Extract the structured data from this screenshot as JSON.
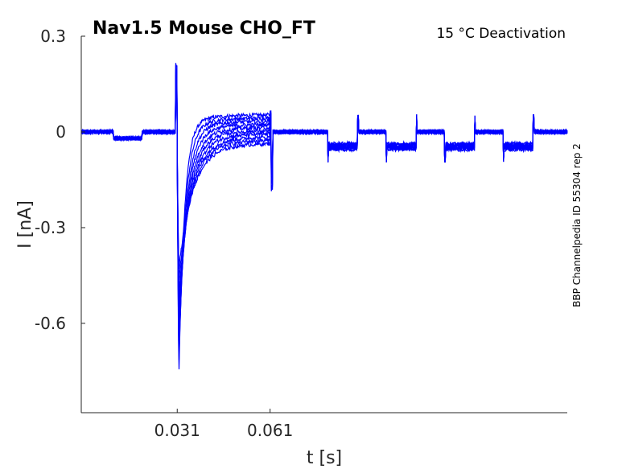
{
  "chart_data": {
    "type": "line",
    "title": "Nav1.5  Mouse  CHO_FT",
    "subtitle": "15 °C  Deactivation",
    "xlabel": "t [s]",
    "ylabel": "I [nA]",
    "side_note": "BBP Channelpedia ID 55304 rep 2",
    "xlim": [
      0.0,
      0.157
    ],
    "ylim": [
      -0.88,
      0.3
    ],
    "x_ticks": [
      0.031,
      0.061
    ],
    "x_tick_labels": [
      "0.031",
      "0.061"
    ],
    "y_ticks": [
      0.3,
      0.0,
      -0.3,
      -0.6
    ],
    "y_tick_labels": [
      "0.3",
      "0",
      "-0.3",
      "-0.6"
    ],
    "grid": false,
    "line_color": "#0000ff",
    "traces": {
      "count": 10,
      "holding_level": 0.0,
      "prepulse_window": [
        0.0103,
        0.0197
      ],
      "prepulse_level": -0.02,
      "activation_step_t": 0.0305,
      "activation_spike_peak": 0.21,
      "peak_inward_current": -0.78,
      "peak_inward_t": 0.0315,
      "step_end_levels": [
        0.055,
        0.045,
        0.035,
        0.025,
        0.015,
        0.005,
        -0.005,
        -0.015,
        -0.025,
        -0.035
      ],
      "return_step_t": 0.061,
      "return_spike_peak": 0.06,
      "return_spike_min": -0.18,
      "test_pulse_windows": [
        [
          0.0797,
          0.0894
        ],
        [
          0.0986,
          0.1083
        ],
        [
          0.1175,
          0.1272
        ],
        [
          0.1364,
          0.1461
        ]
      ],
      "test_pulse_level": -0.045,
      "test_pulse_edge_min": -0.09,
      "test_pulse_edge_max": 0.05
    }
  }
}
